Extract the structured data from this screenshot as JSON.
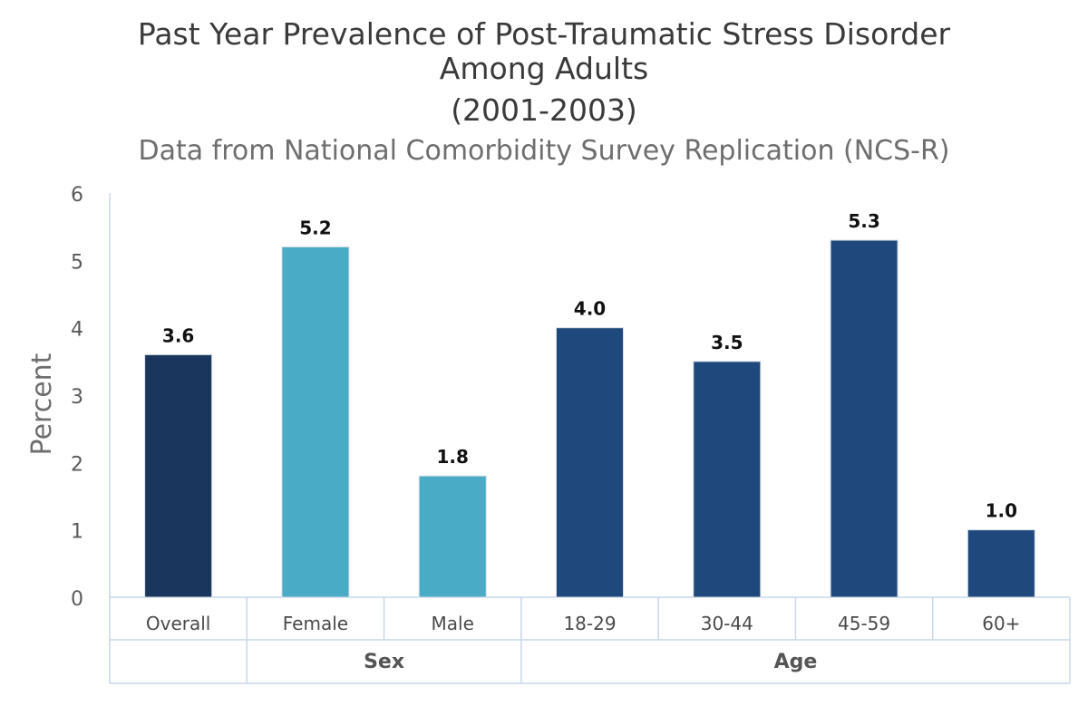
{
  "chart_data": {
    "type": "bar",
    "title_lines": [
      "Past Year Prevalence of Post-Traumatic Stress Disorder",
      "Among Adults",
      "(2001-2003)"
    ],
    "subtitle": "Data from National Comorbidity Survey Replication (NCS-R)",
    "ylabel": "Percent",
    "ylim": [
      0,
      6
    ],
    "yticks": [
      0,
      1,
      2,
      3,
      4,
      5,
      6
    ],
    "grid": false,
    "categories": [
      "Overall",
      "Female",
      "Male",
      "18-29",
      "30-44",
      "45-59",
      "60+"
    ],
    "values": [
      3.6,
      5.2,
      1.8,
      4.0,
      3.5,
      5.3,
      1.0
    ],
    "value_labels": [
      "3.6",
      "5.2",
      "1.8",
      "4.0",
      "3.5",
      "5.3",
      "1.0"
    ],
    "bar_colors": [
      "#1b365d",
      "#4aabc6",
      "#4aabc6",
      "#1f497d",
      "#1f497d",
      "#1f497d",
      "#1f497d"
    ],
    "groups": [
      {
        "label": "",
        "start": 0,
        "end": 0
      },
      {
        "label": "Sex",
        "start": 1,
        "end": 2
      },
      {
        "label": "Age",
        "start": 3,
        "end": 6
      }
    ]
  }
}
